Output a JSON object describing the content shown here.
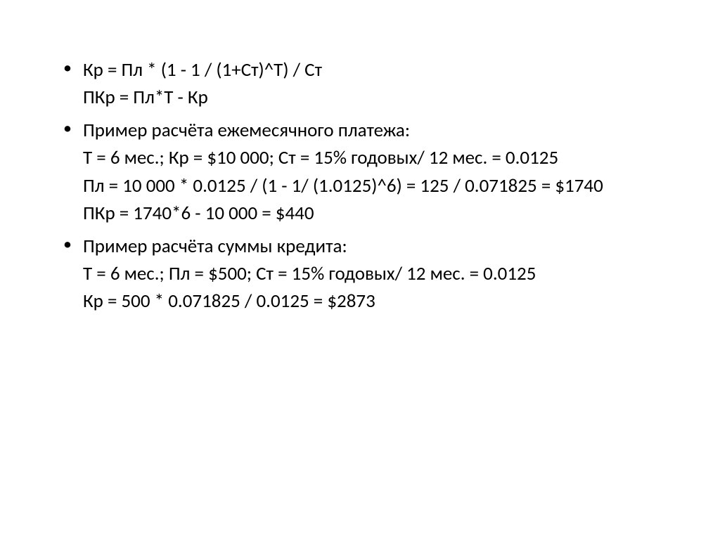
{
  "slide": {
    "bullets": [
      {
        "lines": [
          "Кр = Пл * (1 - 1 / (1+Ст)^Т) / Ст",
          "",
          "ПКр = Пл*Т - Кр"
        ]
      },
      {
        "lines": [
          "Пример расчёта ежемесячного платежа:",
          "Т = 6 мес.; Кр = $10 000; Ст = 15% годовых/ 12 мес. = 0.0125",
          "Пл = 10 000 * 0.0125 / (1 - 1/ (1.0125)^6) = 125 / 0.071825 = $1740",
          "ПКр = 1740*6 - 10 000 = $440"
        ]
      },
      {
        "lines": [
          "Пример расчёта суммы кредита:",
          "Т = 6 мес.; Пл = $500; Ст = 15% годовых/ 12 мес. = 0.0125",
          "Кр = 500 * 0.071825 / 0.0125 = $2873"
        ]
      }
    ],
    "text_color": "#000000",
    "background_color": "#ffffff",
    "font_size": 27,
    "line_height": 1.45
  }
}
